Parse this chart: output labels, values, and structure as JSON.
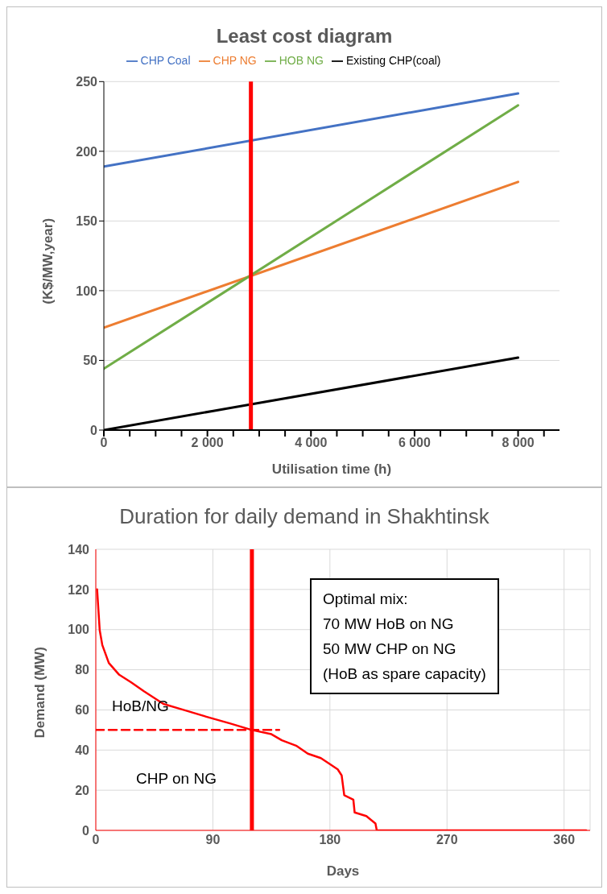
{
  "chart_data": [
    {
      "type": "line",
      "title": "Least cost diagram",
      "xlabel": "Utilisation time (h)",
      "ylabel": "(K$/MW,year)",
      "x": [
        0,
        8000
      ],
      "series": [
        {
          "name": "CHP Coal",
          "color": "#4472c4",
          "values": [
            189,
            241.5
          ]
        },
        {
          "name": "CHP NG",
          "color": "#ed7d31",
          "values": [
            73.5,
            178
          ]
        },
        {
          "name": "HOB NG",
          "color": "#70ad47",
          "values": [
            44,
            233
          ]
        },
        {
          "name": "Existing CHP(coal)",
          "color": "#000000",
          "values": [
            0,
            52
          ]
        }
      ],
      "xlim": [
        0,
        8800
      ],
      "xticks": [
        0,
        {
          "value": 500,
          "label": null
        },
        {
          "value": 1000,
          "label": null
        },
        {
          "value": 1500,
          "label": null
        },
        {
          "value": 2000,
          "label": "2 000"
        },
        {
          "value": 2500,
          "label": null
        },
        {
          "value": 3000,
          "label": null
        },
        {
          "value": 3500,
          "label": null
        },
        {
          "value": 4000,
          "label": "4 000"
        },
        {
          "value": 4500,
          "label": null
        },
        {
          "value": 5000,
          "label": null
        },
        {
          "value": 5500,
          "label": null
        },
        {
          "value": 6000,
          "label": "6 000"
        },
        {
          "value": 6500,
          "label": null
        },
        {
          "value": 7000,
          "label": null
        },
        {
          "value": 7500,
          "label": null
        },
        {
          "value": 8000,
          "label": "8 000"
        },
        {
          "value": 8500,
          "label": null
        }
      ],
      "ylim": [
        0,
        250
      ],
      "yticks": [
        0,
        50,
        100,
        150,
        200,
        250
      ],
      "grid": "y",
      "legend": "top",
      "marker": "none",
      "line_style": "solid",
      "ref_lines": [
        {
          "axis": "x",
          "value": 2840,
          "color": "#ff0000"
        }
      ]
    },
    {
      "type": "line",
      "title": "Duration for daily demand in Shakhtinsk",
      "xlabel": "Days",
      "ylabel": "Demand (MW)",
      "series": [
        {
          "color": "#ff0000",
          "x": [
            1,
            3,
            5,
            10,
            18,
            27,
            37,
            52,
            69,
            86,
            103,
            120,
            135,
            143,
            154,
            163,
            173,
            180,
            186,
            189,
            191,
            198,
            199,
            208,
            215,
            216,
            377
          ],
          "values": [
            120,
            99.7,
            92.3,
            83.4,
            77.5,
            73.8,
            69.3,
            63,
            59.7,
            56.4,
            53.3,
            50,
            47.9,
            44.9,
            42.2,
            38.2,
            36,
            33,
            30.4,
            27.4,
            17.5,
            15.3,
            8.9,
            7.1,
            3.4,
            0,
            0
          ]
        },
        {
          "color": "#ff0000",
          "x": [
            0,
            141
          ],
          "values": [
            50,
            50
          ],
          "line_style": "dashed"
        }
      ],
      "xlim": [
        0,
        380
      ],
      "xticks": [
        0,
        90,
        180,
        270,
        360
      ],
      "ylim": [
        0,
        140
      ],
      "yticks": [
        0,
        20,
        40,
        60,
        80,
        100,
        120,
        140
      ],
      "grid": true,
      "legend": false,
      "marker": "none",
      "line_style": "solid",
      "ref_lines": [
        {
          "axis": "x",
          "value": 120,
          "color": "#ff0000"
        }
      ],
      "annotations": [
        "Optimal mix:\n70 MW HoB on NG\n50 MW CHP on NG\n(HoB as spare capacity)",
        "HoB/NG",
        "CHP on NG"
      ]
    }
  ]
}
